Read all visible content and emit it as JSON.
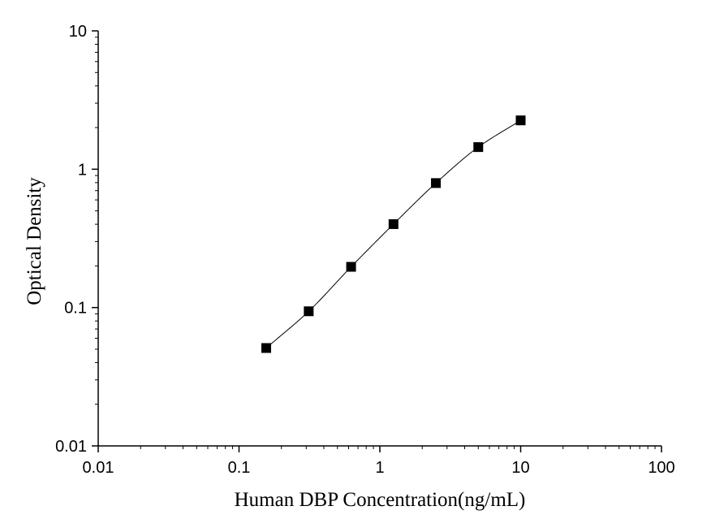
{
  "chart_data": {
    "type": "scatter",
    "xlabel": "Human DBP Concentration(ng/mL)",
    "ylabel": "Optical Density",
    "xscale": "log",
    "yscale": "log",
    "xlim": [
      0.01,
      100
    ],
    "ylim": [
      0.01,
      10
    ],
    "x_ticks": [
      "0.01",
      "0.1",
      "1",
      "10",
      "100"
    ],
    "y_ticks": [
      "0.01",
      "0.1",
      "1",
      "10"
    ],
    "grid": false,
    "series": [
      {
        "marker": "square",
        "fit_line": true,
        "x": [
          0.156,
          0.3125,
          0.625,
          1.25,
          2.5,
          5,
          10
        ],
        "y": [
          0.051,
          0.094,
          0.197,
          0.401,
          0.794,
          1.445,
          2.254
        ]
      }
    ],
    "colors": {
      "marker": "#000000",
      "line": "#000000"
    }
  }
}
